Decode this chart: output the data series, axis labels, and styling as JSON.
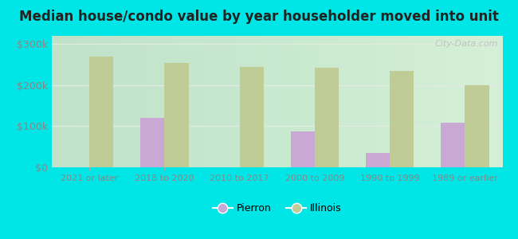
{
  "categories": [
    "2021 or later",
    "2018 to 2020",
    "2010 to 2017",
    "2000 to 2009",
    "1990 to 1999",
    "1989 or earlier"
  ],
  "pierron_values": [
    null,
    120000,
    null,
    88000,
    35000,
    108000
  ],
  "illinois_values": [
    270000,
    255000,
    245000,
    243000,
    235000,
    200000
  ],
  "pierron_color": "#c9a8d4",
  "illinois_color": "#bfcc96",
  "title": "Median house/condo value by year householder moved into unit",
  "ylabel_ticks": [
    "$0",
    "$100k",
    "$200k",
    "$300k"
  ],
  "ytick_values": [
    0,
    100000,
    200000,
    300000
  ],
  "ylim": [
    0,
    320000
  ],
  "bar_width": 0.32,
  "legend_labels": [
    "Pierron",
    "Illinois"
  ],
  "watermark": "City-Data.com",
  "outer_bg": "#00e5e5",
  "plot_bg_left": "#d4edda",
  "plot_bg_right": "#f8fff8",
  "grid_color": "#e0ece0",
  "tick_color": "#888888",
  "title_fontsize": 12
}
